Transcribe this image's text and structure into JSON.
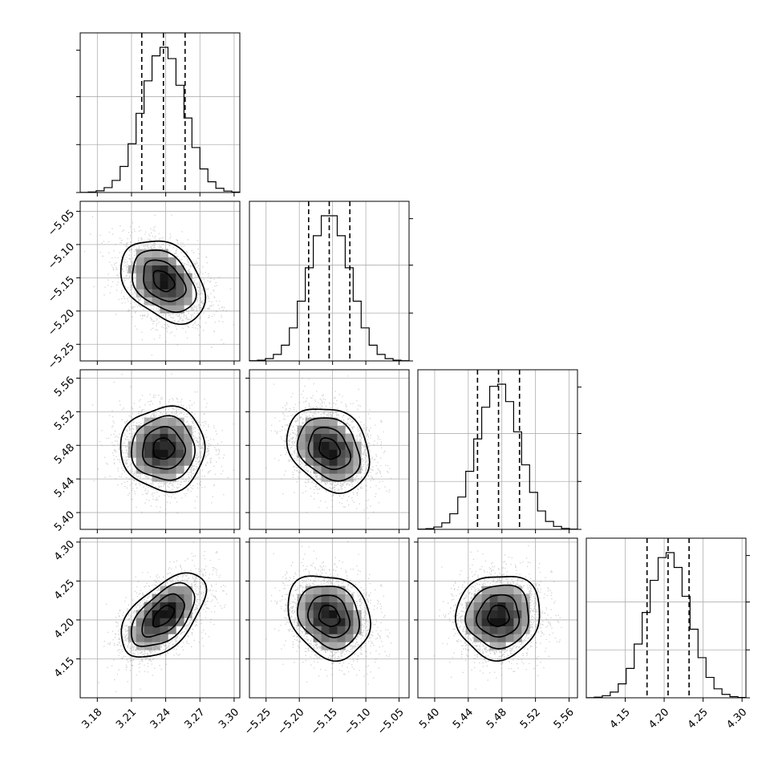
{
  "chart_data": {
    "type": "corner",
    "title": "",
    "parameters": [
      {
        "index": 0,
        "range": [
          3.165,
          3.305
        ],
        "ticks": [
          3.18,
          3.21,
          3.24,
          3.27,
          3.3
        ],
        "tick_labels": [
          "3.18",
          "3.21",
          "3.24",
          "3.27",
          "3.30"
        ],
        "quantiles": [
          3.219,
          3.238,
          3.257
        ],
        "mean": 3.238,
        "sd": 0.0185
      },
      {
        "index": 1,
        "range": [
          -5.275,
          -5.035
        ],
        "ticks": [
          -5.25,
          -5.2,
          -5.15,
          -5.1,
          -5.05
        ],
        "tick_labels": [
          "−5.25",
          "−5.20",
          "−5.15",
          "−5.10",
          "−5.05"
        ],
        "quantiles": [
          -5.186,
          -5.155,
          -5.124
        ],
        "mean": -5.155,
        "sd": 0.031
      },
      {
        "index": 2,
        "range": [
          5.38,
          5.57
        ],
        "ticks": [
          5.4,
          5.44,
          5.48,
          5.52,
          5.56
        ],
        "tick_labels": [
          "5.40",
          "5.44",
          "5.48",
          "5.52",
          "5.56"
        ],
        "quantiles": [
          5.451,
          5.476,
          5.501
        ],
        "mean": 5.476,
        "sd": 0.025
      },
      {
        "index": 3,
        "range": [
          4.1,
          4.305
        ],
        "ticks": [
          4.15,
          4.2,
          4.25,
          4.3
        ],
        "tick_labels": [
          "4.15",
          "4.20",
          "4.25",
          "4.30"
        ],
        "quantiles": [
          4.178,
          4.205,
          4.232
        ],
        "mean": 4.205,
        "sd": 0.027
      }
    ],
    "correlations": [
      {
        "pair": [
          1,
          0
        ],
        "r": -0.35
      },
      {
        "pair": [
          2,
          0
        ],
        "r": 0.0
      },
      {
        "pair": [
          2,
          1
        ],
        "r": -0.25
      },
      {
        "pair": [
          3,
          0
        ],
        "r": 0.55
      },
      {
        "pair": [
          3,
          1
        ],
        "r": -0.2
      },
      {
        "pair": [
          3,
          2
        ],
        "r": 0.05
      }
    ],
    "hist_bins": 20,
    "contour_levels_sigma": [
      0.5,
      1.0,
      1.5,
      2.0
    ],
    "colors": {
      "line": "#000000",
      "grid": "#b0b0b0",
      "points": "#7f7f7f"
    },
    "grid": true,
    "legend": "none"
  }
}
